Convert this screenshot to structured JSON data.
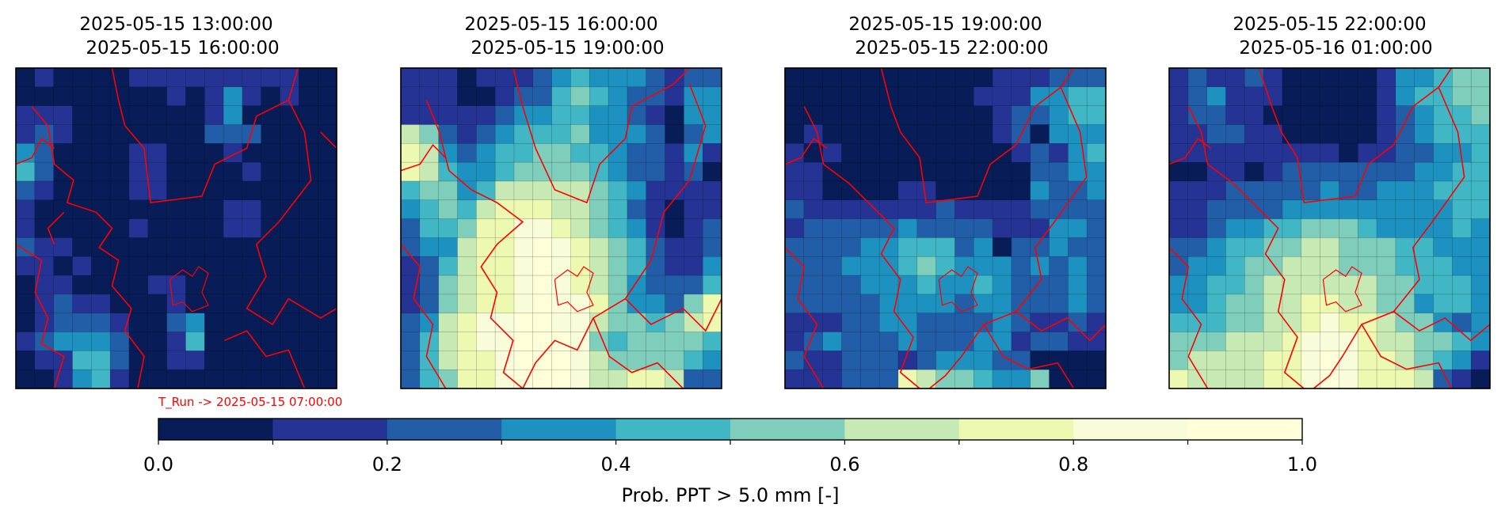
{
  "run_label": "T_Run -> 2025-05-15  07:00:00",
  "colorbar": {
    "label": "Prob. PPT > 5.0 mm  [-]",
    "ticks": [
      "0.0",
      "0.2",
      "0.4",
      "0.6",
      "0.8",
      "1.0"
    ],
    "bounds": [
      0,
      0.1,
      0.2,
      0.3,
      0.4,
      0.5,
      0.6,
      0.7,
      0.8,
      0.9,
      1.0
    ],
    "colors": [
      "#081d58",
      "#253494",
      "#225ea8",
      "#1d91c0",
      "#41b6c4",
      "#7fcdbb",
      "#c7e9b4",
      "#edf8b1",
      "#f8fcd9",
      "#ffffd9"
    ]
  },
  "border_color": "#ff0000",
  "chart_data": [
    {
      "type": "heatmap",
      "title_line1": "2025-05-15  13:00:00",
      "title_line2": "2025-05-15  16:00:00",
      "grid": [
        [
          0,
          1,
          0,
          0,
          0,
          0,
          1,
          1,
          1,
          1,
          1,
          1,
          1,
          1,
          1,
          0,
          0
        ],
        [
          0,
          0,
          0,
          0,
          0,
          0,
          0,
          0,
          1,
          0,
          1,
          3,
          1,
          0,
          1,
          0,
          0
        ],
        [
          1,
          1,
          1,
          0,
          0,
          0,
          0,
          0,
          0,
          0,
          1,
          3,
          0,
          0,
          0,
          0,
          0
        ],
        [
          1,
          2,
          1,
          0,
          0,
          0,
          0,
          0,
          0,
          0,
          2,
          2,
          2,
          0,
          0,
          0,
          0
        ],
        [
          3,
          2,
          0,
          0,
          0,
          0,
          1,
          1,
          0,
          0,
          0,
          1,
          0,
          0,
          0,
          0,
          0
        ],
        [
          4,
          2,
          0,
          0,
          0,
          0,
          1,
          1,
          0,
          0,
          0,
          0,
          1,
          0,
          0,
          0,
          0
        ],
        [
          2,
          1,
          0,
          0,
          0,
          0,
          1,
          1,
          0,
          0,
          0,
          0,
          0,
          0,
          0,
          0,
          0
        ],
        [
          1,
          0,
          0,
          0,
          0,
          0,
          0,
          0,
          0,
          0,
          0,
          1,
          1,
          0,
          0,
          0,
          0
        ],
        [
          1,
          0,
          0,
          0,
          0,
          0,
          1,
          0,
          0,
          0,
          0,
          1,
          1,
          0,
          0,
          0,
          0
        ],
        [
          2,
          1,
          1,
          0,
          0,
          0,
          0,
          0,
          0,
          0,
          0,
          0,
          0,
          0,
          0,
          0,
          0
        ],
        [
          1,
          1,
          0,
          1,
          0,
          0,
          0,
          0,
          0,
          0,
          0,
          0,
          0,
          0,
          0,
          0,
          0
        ],
        [
          0,
          1,
          1,
          0,
          0,
          0,
          0,
          1,
          1,
          0,
          0,
          0,
          0,
          0,
          0,
          0,
          0
        ],
        [
          0,
          1,
          2,
          1,
          1,
          0,
          0,
          0,
          1,
          0,
          0,
          0,
          0,
          0,
          0,
          0,
          0
        ],
        [
          0,
          1,
          2,
          2,
          2,
          1,
          0,
          0,
          2,
          3,
          0,
          0,
          0,
          0,
          0,
          0,
          0
        ],
        [
          1,
          2,
          3,
          3,
          3,
          2,
          0,
          0,
          1,
          4,
          0,
          0,
          0,
          0,
          0,
          0,
          0
        ],
        [
          0,
          1,
          1,
          4,
          4,
          2,
          0,
          0,
          1,
          1,
          0,
          0,
          0,
          0,
          0,
          0,
          0
        ],
        [
          0,
          0,
          1,
          3,
          4,
          1,
          0,
          0,
          0,
          0,
          0,
          0,
          0,
          0,
          0,
          0,
          0
        ]
      ]
    },
    {
      "type": "heatmap",
      "title_line1": "2025-05-15  16:00:00",
      "title_line2": "2025-05-15  19:00:00",
      "grid": [
        [
          1,
          1,
          1,
          0,
          1,
          1,
          1,
          2,
          3,
          4,
          3,
          3,
          3,
          2,
          1,
          2,
          2
        ],
        [
          1,
          1,
          1,
          0,
          0,
          1,
          2,
          2,
          4,
          5,
          4,
          3,
          2,
          2,
          1,
          3,
          3
        ],
        [
          1,
          1,
          1,
          1,
          1,
          2,
          3,
          3,
          4,
          4,
          3,
          3,
          2,
          1,
          0,
          3,
          3
        ],
        [
          6,
          5,
          2,
          1,
          2,
          3,
          4,
          4,
          4,
          5,
          3,
          3,
          3,
          2,
          0,
          2,
          3
        ],
        [
          7,
          6,
          3,
          2,
          3,
          4,
          4,
          5,
          5,
          4,
          4,
          3,
          2,
          2,
          1,
          3,
          1
        ],
        [
          7,
          6,
          4,
          3,
          3,
          4,
          5,
          5,
          5,
          5,
          4,
          3,
          2,
          2,
          1,
          2,
          0
        ],
        [
          4,
          5,
          5,
          3,
          4,
          6,
          6,
          6,
          6,
          6,
          5,
          4,
          3,
          1,
          1,
          1,
          1
        ],
        [
          3,
          4,
          5,
          4,
          6,
          7,
          7,
          7,
          6,
          6,
          5,
          4,
          2,
          1,
          0,
          1,
          1
        ],
        [
          2,
          4,
          4,
          5,
          7,
          7,
          8,
          8,
          7,
          6,
          5,
          4,
          3,
          1,
          0,
          1,
          2
        ],
        [
          2,
          3,
          3,
          6,
          7,
          7,
          8,
          9,
          8,
          7,
          6,
          5,
          4,
          2,
          1,
          1,
          2
        ],
        [
          1,
          2,
          4,
          6,
          7,
          7,
          8,
          9,
          8,
          7,
          6,
          5,
          4,
          2,
          1,
          1,
          3
        ],
        [
          1,
          2,
          5,
          6,
          7,
          7,
          8,
          9,
          8,
          7,
          6,
          5,
          3,
          2,
          2,
          2,
          4
        ],
        [
          1,
          2,
          5,
          6,
          7,
          7,
          8,
          9,
          8,
          8,
          7,
          5,
          3,
          3,
          2,
          5,
          7
        ],
        [
          2,
          3,
          6,
          7,
          8,
          8,
          9,
          9,
          8,
          8,
          6,
          5,
          5,
          4,
          5,
          6,
          7
        ],
        [
          2,
          4,
          6,
          7,
          8,
          8,
          9,
          9,
          9,
          8,
          5,
          4,
          5,
          5,
          5,
          5,
          4
        ],
        [
          2,
          4,
          6,
          7,
          7,
          8,
          9,
          9,
          9,
          8,
          6,
          5,
          5,
          5,
          5,
          4,
          3
        ],
        [
          2,
          4,
          5,
          7,
          7,
          8,
          9,
          9,
          9,
          8,
          6,
          6,
          7,
          7,
          6,
          2,
          2
        ]
      ]
    },
    {
      "type": "heatmap",
      "title_line1": "2025-05-15  19:00:00",
      "title_line2": "2025-05-15  22:00:00",
      "grid": [
        [
          0,
          0,
          0,
          0,
          0,
          0,
          0,
          0,
          0,
          0,
          0,
          1,
          1,
          1,
          2,
          2,
          2
        ],
        [
          0,
          0,
          0,
          0,
          0,
          0,
          0,
          0,
          0,
          0,
          1,
          1,
          1,
          3,
          3,
          4,
          4
        ],
        [
          0,
          0,
          0,
          0,
          0,
          0,
          0,
          0,
          0,
          0,
          0,
          1,
          2,
          2,
          3,
          4,
          4
        ],
        [
          0,
          1,
          0,
          0,
          0,
          0,
          0,
          0,
          0,
          0,
          0,
          1,
          2,
          0,
          3,
          3,
          3
        ],
        [
          1,
          0,
          1,
          0,
          0,
          0,
          0,
          0,
          0,
          0,
          0,
          0,
          1,
          2,
          1,
          3,
          4
        ],
        [
          1,
          1,
          0,
          0,
          0,
          0,
          0,
          0,
          0,
          0,
          0,
          0,
          0,
          2,
          2,
          3,
          3
        ],
        [
          1,
          1,
          0,
          0,
          0,
          0,
          1,
          1,
          0,
          0,
          0,
          0,
          0,
          3,
          2,
          2,
          3
        ],
        [
          2,
          1,
          1,
          1,
          1,
          1,
          1,
          1,
          2,
          1,
          1,
          1,
          1,
          2,
          2,
          2,
          2
        ],
        [
          1,
          2,
          2,
          2,
          2,
          2,
          3,
          2,
          2,
          2,
          2,
          1,
          1,
          1,
          3,
          3,
          2
        ],
        [
          2,
          2,
          2,
          2,
          3,
          3,
          4,
          4,
          4,
          2,
          3,
          0,
          2,
          2,
          3,
          2,
          2
        ],
        [
          2,
          2,
          2,
          3,
          3,
          3,
          4,
          5,
          4,
          3,
          3,
          3,
          2,
          3,
          2,
          3,
          2
        ],
        [
          2,
          2,
          2,
          2,
          3,
          3,
          3,
          4,
          3,
          3,
          4,
          3,
          2,
          2,
          2,
          3,
          2
        ],
        [
          2,
          2,
          2,
          2,
          2,
          3,
          3,
          3,
          3,
          2,
          3,
          3,
          2,
          2,
          2,
          3,
          2
        ],
        [
          1,
          1,
          1,
          2,
          2,
          3,
          3,
          2,
          2,
          2,
          2,
          3,
          2,
          1,
          1,
          2,
          1
        ],
        [
          1,
          2,
          3,
          2,
          2,
          2,
          3,
          2,
          2,
          2,
          3,
          3,
          1,
          2,
          2,
          1,
          1
        ],
        [
          2,
          1,
          1,
          2,
          2,
          2,
          1,
          2,
          3,
          3,
          3,
          2,
          2,
          0,
          0,
          0,
          0
        ],
        [
          1,
          1,
          1,
          2,
          2,
          2,
          7,
          6,
          5,
          5,
          4,
          3,
          3,
          5,
          0,
          0,
          0
        ]
      ]
    },
    {
      "type": "heatmap",
      "title_line1": "2025-05-15  22:00:00",
      "title_line2": "2025-05-16  01:00:00",
      "grid": [
        [
          1,
          2,
          1,
          1,
          2,
          1,
          0,
          0,
          0,
          0,
          0,
          1,
          3,
          3,
          4,
          5,
          5
        ],
        [
          1,
          2,
          3,
          1,
          1,
          1,
          0,
          0,
          0,
          0,
          0,
          1,
          3,
          4,
          4,
          5,
          5
        ],
        [
          1,
          2,
          2,
          1,
          1,
          0,
          0,
          0,
          0,
          0,
          0,
          1,
          2,
          3,
          4,
          4,
          5
        ],
        [
          1,
          1,
          2,
          2,
          1,
          1,
          0,
          0,
          0,
          0,
          0,
          1,
          2,
          3,
          4,
          4,
          4
        ],
        [
          1,
          1,
          1,
          1,
          1,
          1,
          1,
          1,
          1,
          0,
          1,
          1,
          2,
          2,
          3,
          3,
          4
        ],
        [
          0,
          0,
          1,
          1,
          0,
          1,
          2,
          2,
          2,
          2,
          2,
          2,
          2,
          3,
          3,
          4,
          4
        ],
        [
          1,
          1,
          1,
          2,
          2,
          2,
          2,
          2,
          3,
          2,
          2,
          3,
          3,
          3,
          4,
          4,
          4
        ],
        [
          1,
          1,
          2,
          2,
          2,
          2,
          3,
          3,
          3,
          3,
          3,
          3,
          3,
          3,
          3,
          4,
          4
        ],
        [
          1,
          1,
          2,
          3,
          3,
          4,
          4,
          5,
          5,
          5,
          4,
          3,
          3,
          3,
          3,
          4,
          3
        ],
        [
          2,
          2,
          3,
          4,
          4,
          5,
          5,
          6,
          6,
          5,
          5,
          5,
          4,
          4,
          3,
          3,
          3
        ],
        [
          2,
          3,
          3,
          4,
          5,
          5,
          6,
          6,
          6,
          5,
          5,
          5,
          4,
          4,
          4,
          3,
          3
        ],
        [
          3,
          3,
          4,
          4,
          5,
          6,
          6,
          6,
          6,
          6,
          6,
          5,
          5,
          4,
          4,
          4,
          3
        ],
        [
          3,
          3,
          4,
          5,
          5,
          6,
          6,
          7,
          7,
          6,
          6,
          5,
          5,
          3,
          4,
          4,
          3
        ],
        [
          4,
          4,
          4,
          5,
          5,
          6,
          6,
          7,
          8,
          7,
          7,
          6,
          5,
          5,
          3,
          2,
          3
        ],
        [
          5,
          5,
          5,
          6,
          6,
          6,
          7,
          8,
          8,
          8,
          7,
          6,
          6,
          5,
          5,
          4,
          3
        ],
        [
          5,
          6,
          6,
          6,
          6,
          7,
          7,
          8,
          9,
          8,
          7,
          7,
          6,
          5,
          4,
          3,
          1
        ],
        [
          7,
          6,
          6,
          6,
          6,
          7,
          7,
          8,
          9,
          8,
          7,
          7,
          7,
          6,
          2,
          1,
          0
        ]
      ]
    }
  ]
}
